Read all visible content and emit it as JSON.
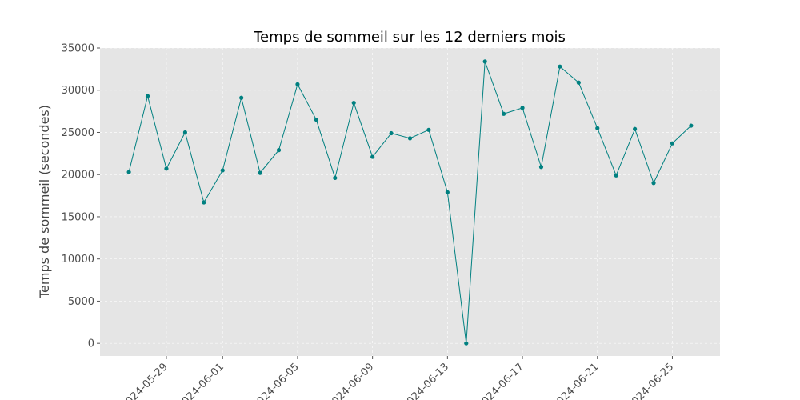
{
  "chart_data": {
    "type": "line",
    "title": "Temps de sommeil sur les 12 derniers mois",
    "xlabel": "",
    "ylabel": "Temps de sommeil (secondes)",
    "ylim": [
      -1500,
      35000
    ],
    "xlim": [
      "2024-05-25T11:00",
      "2024-06-27T13:00"
    ],
    "yticks": [
      0,
      5000,
      10000,
      15000,
      20000,
      25000,
      30000,
      35000
    ],
    "xticks": [
      "2024-05-29",
      "2024-06-01",
      "2024-06-05",
      "2024-06-09",
      "2024-06-13",
      "2024-06-17",
      "2024-06-21",
      "2024-06-25"
    ],
    "grid": true,
    "colors": {
      "series": "#008080",
      "plot_bg": "#e5e5e5",
      "grid": "#ffffff"
    },
    "series": [
      {
        "name": "",
        "x": [
          "2024-05-27",
          "2024-05-28",
          "2024-05-29",
          "2024-05-30",
          "2024-05-31",
          "2024-06-01",
          "2024-06-02",
          "2024-06-03",
          "2024-06-04",
          "2024-06-05",
          "2024-06-06",
          "2024-06-07",
          "2024-06-08",
          "2024-06-09",
          "2024-06-10",
          "2024-06-11",
          "2024-06-12",
          "2024-06-13",
          "2024-06-14",
          "2024-06-15",
          "2024-06-16",
          "2024-06-17",
          "2024-06-18",
          "2024-06-19",
          "2024-06-20",
          "2024-06-21",
          "2024-06-22",
          "2024-06-23",
          "2024-06-24",
          "2024-06-25",
          "2024-06-26"
        ],
        "values": [
          20300,
          29300,
          20700,
          25000,
          16700,
          20500,
          29100,
          20200,
          22900,
          30700,
          26500,
          19600,
          28500,
          22100,
          24900,
          24300,
          25300,
          17900,
          0,
          33400,
          27200,
          27900,
          20900,
          32800,
          30900,
          25500,
          19900,
          25400,
          19000,
          23700,
          25800
        ]
      }
    ]
  }
}
